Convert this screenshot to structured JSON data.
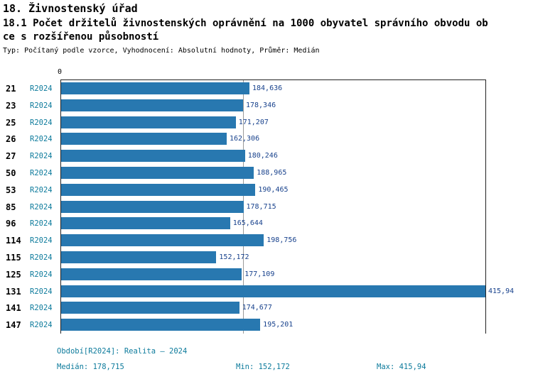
{
  "header": {
    "title": "18. Živnostenský úřad",
    "subtitle_line1": "18.1 Počet držitelů živnostenských oprávnění na 1000 obyvatel správního obvodu ob",
    "subtitle_line2": "ce s rozšířenou působností",
    "meta": "Typ: Počítaný podle vzorce, Vyhodnocení: Absolutní hodnoty, Průměr: Medián"
  },
  "chart_data": {
    "type": "bar",
    "orientation": "horizontal",
    "title": "18.1 Počet držitelů živnostenských oprávnění na 1000 obyvatel správního obvodu obce s rozšířenou působností",
    "axis_zero_label": "0",
    "series_label": "R2024",
    "categories": [
      "21",
      "23",
      "25",
      "26",
      "27",
      "50",
      "53",
      "85",
      "96",
      "114",
      "115",
      "125",
      "131",
      "141",
      "147"
    ],
    "values": [
      184.636,
      178.346,
      171.207,
      162.306,
      180.246,
      188.965,
      190.465,
      178.715,
      165.644,
      198.756,
      152.172,
      177.109,
      415.94,
      174.677,
      195.201
    ],
    "value_labels": [
      "184,636",
      "178,346",
      "171,207",
      "162,306",
      "180,246",
      "188,965",
      "190,465",
      "178,715",
      "165,644",
      "198,756",
      "152,172",
      "177,109",
      "415,94",
      "174,677",
      "195,201"
    ],
    "xlim": [
      0,
      415.94
    ],
    "median": 178.715,
    "min": 152.172,
    "max": 415.94,
    "grid": "single vertical median line",
    "legend_position": "none",
    "xlabel": "",
    "ylabel": "",
    "bar_color": "#2878b0",
    "series_label_color": "#0d7b9c",
    "value_label_color": "#17418c"
  },
  "footer": {
    "period": "Období[R2024]: Realita – 2024",
    "median": "Medián: 178,715",
    "min": "Min: 152,172",
    "max": "Max: 415,94"
  }
}
